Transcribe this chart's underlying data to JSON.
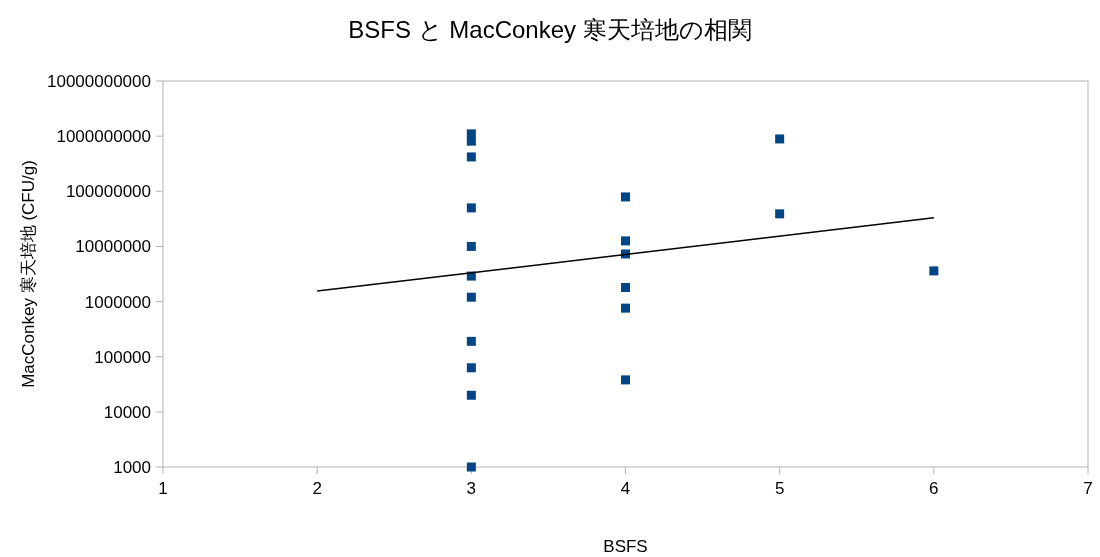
{
  "chart_data": {
    "type": "scatter",
    "title": "BSFS と MacConkey 寒天培地の相関",
    "xlabel": "BSFS",
    "ylabel": "MacConkey 寒天培地 (CFU/g)",
    "log": "y",
    "grid": false,
    "xlim": [
      1,
      7
    ],
    "xticks": [
      1,
      2,
      3,
      4,
      5,
      6,
      7
    ],
    "ylim": [
      1000,
      10000000000
    ],
    "yticks": [
      1000,
      10000,
      100000,
      1000000,
      10000000,
      100000000,
      1000000000,
      10000000000
    ],
    "series": [
      {
        "marker": "square",
        "color": "#004586",
        "x": [
          3,
          3,
          3,
          3,
          3,
          3,
          3,
          3,
          3,
          3,
          3,
          4,
          4,
          4,
          4,
          4,
          4,
          5,
          5,
          6
        ],
        "values": [
          1100000000,
          810000000,
          420000000,
          50000000,
          10000000,
          2900000,
          1200000,
          190000,
          63000,
          20000,
          1000,
          79000000,
          12600000,
          7300000,
          1800000,
          760000,
          38000,
          890000000,
          39000000,
          3600000
        ]
      },
      {
        "type": "line",
        "color": "#000000",
        "x": [
          2,
          6
        ],
        "values": [
          1550000,
          33000000
        ]
      }
    ]
  }
}
